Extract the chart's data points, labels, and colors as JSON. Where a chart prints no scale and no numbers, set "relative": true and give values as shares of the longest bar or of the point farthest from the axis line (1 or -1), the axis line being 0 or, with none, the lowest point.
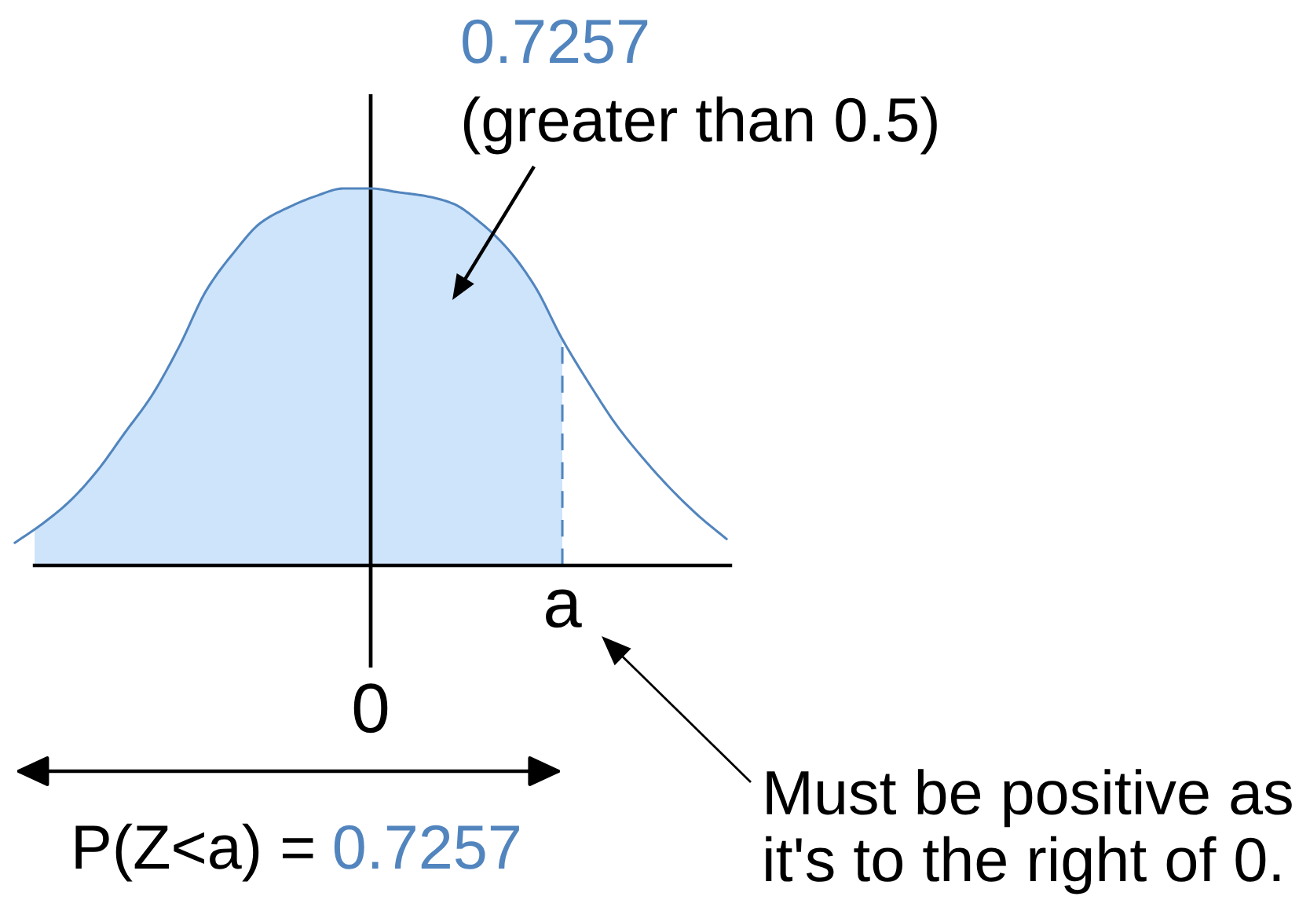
{
  "chart_data": {
    "type": "area",
    "relative": true,
    "categories": [
      null,
      null,
      null,
      null,
      null,
      null,
      null,
      null,
      null,
      null,
      null,
      null,
      null,
      "0",
      null,
      null,
      null,
      null,
      null,
      null,
      "a",
      null,
      null,
      null,
      null,
      null,
      null
    ],
    "series": [
      {
        "color": "#cde4fb",
        "line_style": "dashed",
        "values": [
          0.06,
          0.11,
          0.17,
          0.25,
          0.35,
          0.45,
          0.58,
          0.73,
          0.83,
          0.91,
          0.95,
          0.98,
          1.0,
          1.0,
          0.99,
          0.98,
          0.96,
          0.91,
          0.84,
          0.74,
          0.6,
          null,
          null,
          null,
          null,
          null,
          null
        ]
      },
      {
        "type": "line",
        "color": "#5285be",
        "values": [
          0.06,
          0.11,
          0.17,
          0.25,
          0.35,
          0.45,
          0.58,
          0.73,
          0.83,
          0.91,
          0.95,
          0.98,
          1.0,
          1.0,
          0.99,
          0.98,
          0.96,
          0.91,
          0.84,
          0.74,
          0.6,
          0.48,
          0.37,
          0.28,
          0.2,
          0.13,
          0.07
        ]
      }
    ],
    "ref_lines": [
      {
        "axis": "x",
        "value": "0",
        "color": "#000000"
      }
    ],
    "annotations": [
      "0.7257",
      "(greater than 0.5)",
      "P(Z<a) =",
      "0.7257",
      "Must be positive as\nit's to the right of 0."
    ]
  }
}
